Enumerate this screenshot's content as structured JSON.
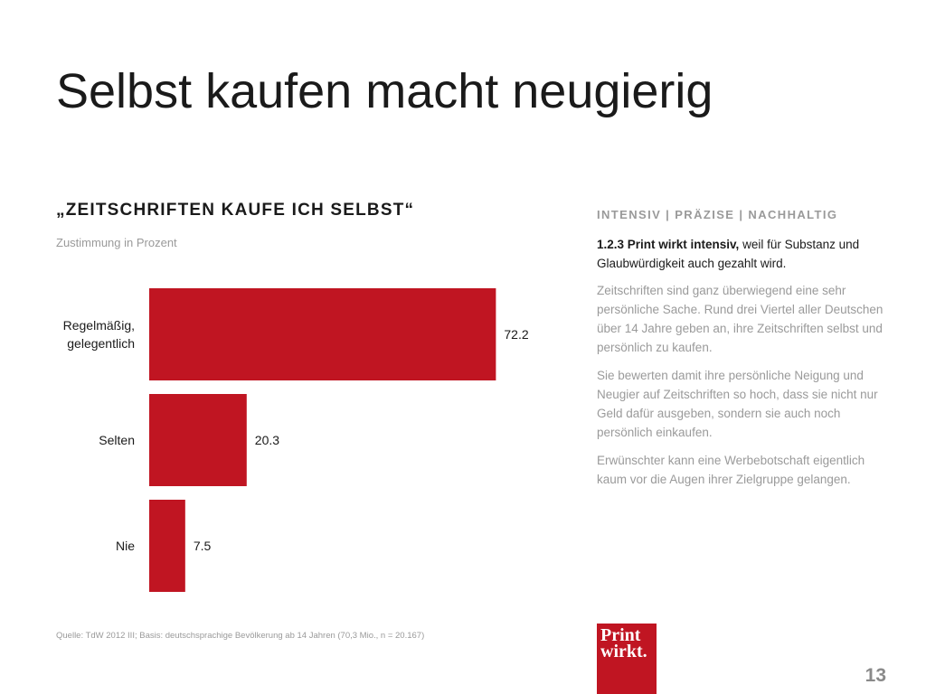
{
  "slide": {
    "title": "Selbst kaufen macht neugierig",
    "page_number": "13"
  },
  "chart_data": {
    "type": "bar",
    "orientation": "horizontal",
    "title": "„ZEITSCHRIFTEN KAUFE ICH SELBST“",
    "subtitle": "Zustimmung in Prozent",
    "categories": [
      "Regelmäßig, gelegentlich",
      "Selten",
      "Nie"
    ],
    "category_lines": [
      [
        "Regelmäßig,",
        "gelegentlich"
      ],
      [
        "Selten"
      ],
      [
        "Nie"
      ]
    ],
    "values": [
      72.2,
      20.3,
      7.5
    ],
    "value_labels": [
      "72.2",
      "20.3",
      "7.5"
    ],
    "color": "#c01522",
    "xlim": [
      0,
      100
    ],
    "grid": false,
    "legend": "none",
    "source": "Quelle: TdW 2012 III; Basis: deutschsprachige Bevölkerung ab 14 Jahren (70,3 Mio., n = 20.167)"
  },
  "sidebar": {
    "heading": "INTENSIV | PRÄZISE | NACHHALTIG",
    "lead_bold": "1.2.3 Print wirkt intensiv,",
    "lead_rest": " weil für Substanz und Glaubwürdigkeit auch gezahlt wird.",
    "paragraphs": [
      "Zeitschriften sind ganz überwiegend eine sehr persönliche Sache. Rund drei Viertel aller Deutschen über 14 Jahre geben an, ihre Zeitschriften selbst und persönlich zu kaufen.",
      "Sie bewerten damit ihre persönliche Neigung und Neugier auf Zeitschriften so hoch, dass sie nicht nur Geld dafür ausgeben, sondern sie auch noch persönlich einkaufen.",
      "Erwünschter kann eine Werbebotschaft eigentlich kaum vor die Augen ihrer Zielgruppe gelangen."
    ]
  },
  "logo": {
    "line1": "Print",
    "line2": "wirkt."
  }
}
